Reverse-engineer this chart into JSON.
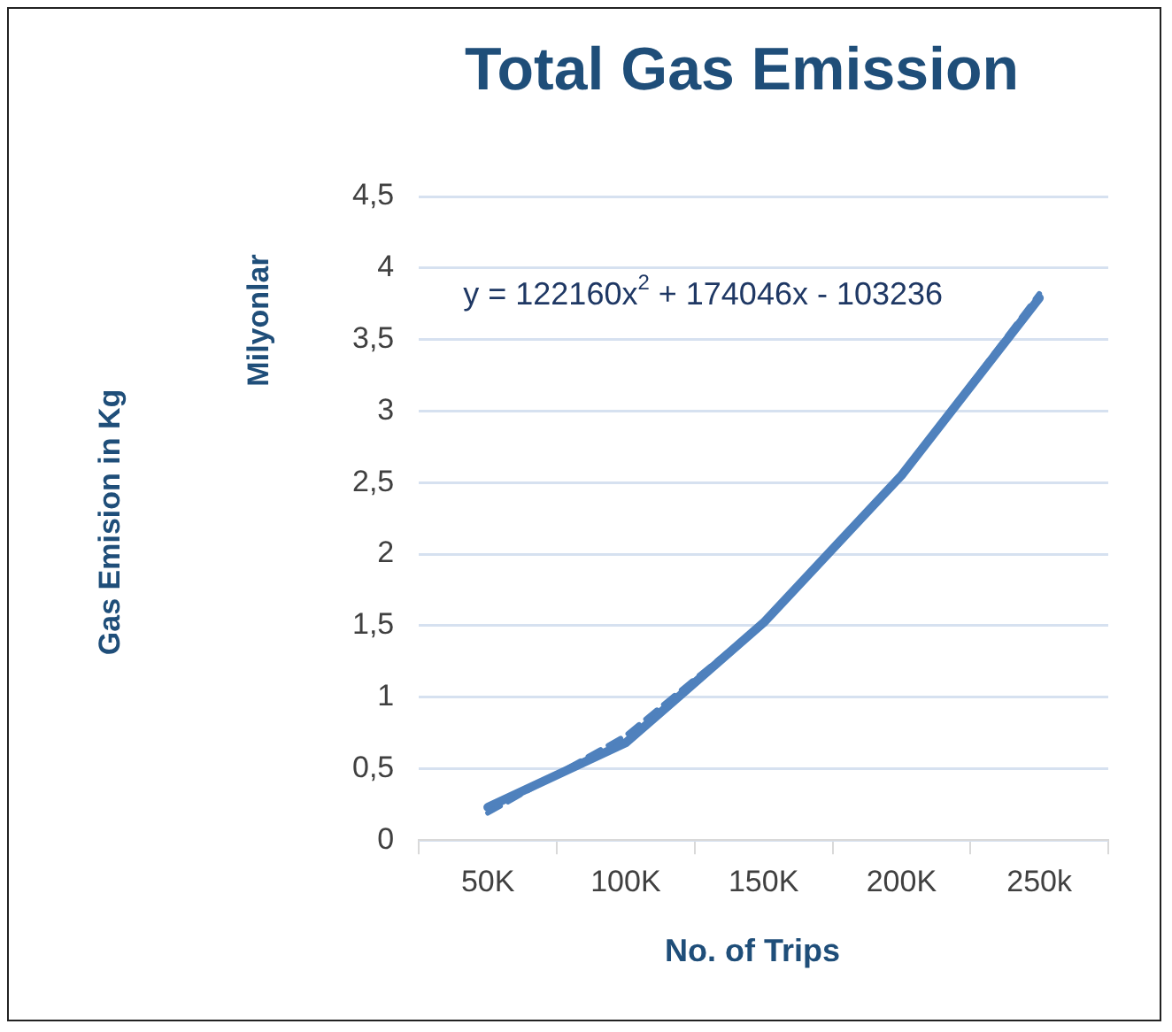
{
  "chart_data": {
    "type": "line",
    "title": "Total Gas Emission",
    "xlabel": "No. of Trips",
    "ylabel": "Milyonlar",
    "categories": [
      "50K",
      "100K",
      "150K",
      "200K",
      "250k"
    ],
    "series": [
      {
        "color": "#4f81bd",
        "values": [
          0.23,
          0.68,
          1.52,
          2.55,
          3.79
        ]
      },
      {
        "color": "#4f81bd",
        "values": [
          0.19,
          0.73,
          1.52,
          2.55,
          3.82
        ],
        "line_style": "dashed"
      }
    ],
    "ylim": [
      0,
      4.5
    ],
    "yticks": [
      0,
      {
        "value": 0.5,
        "label": "0,5"
      },
      1,
      {
        "value": 1.5,
        "label": "1,5"
      },
      2,
      {
        "value": 2.5,
        "label": "2,5"
      },
      3,
      {
        "value": 3.5,
        "label": "3,5"
      },
      4,
      {
        "value": 4.5,
        "label": "4,5"
      }
    ],
    "grid": "y",
    "legend": false,
    "marker": "none",
    "annotations": [
      "y = 122160x$^{2}$ + 174046x - 103236",
      "Gas Emision in Kg"
    ]
  }
}
